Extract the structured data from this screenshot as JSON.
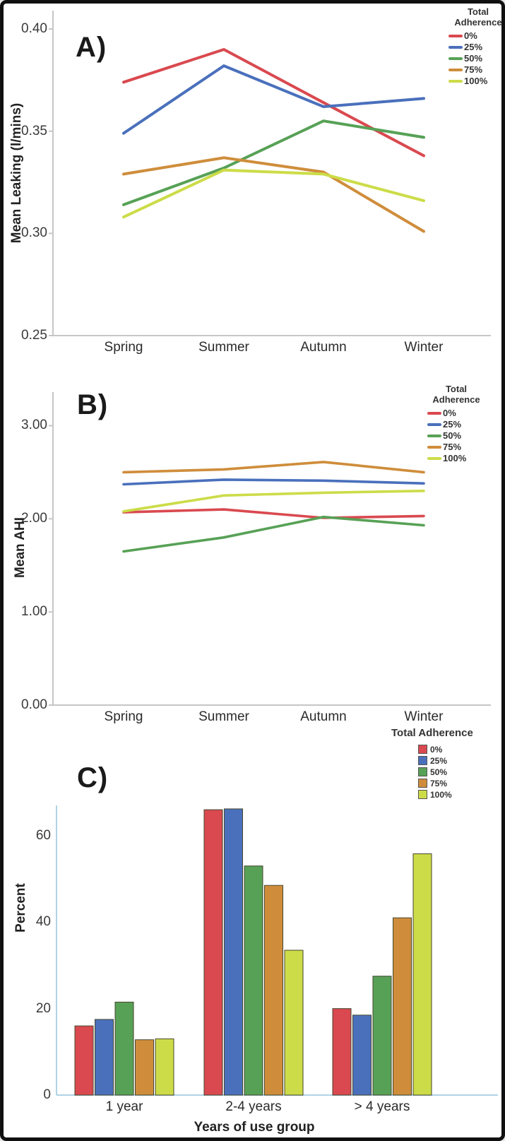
{
  "legend_title": "Total Adherence",
  "chart_data": [
    {
      "id": "A",
      "type": "line",
      "panel_label": "A)",
      "ylabel": "Mean Leaking (l/mins)",
      "legend_title": "Total Adherence",
      "categories": [
        "Spring",
        "Summer",
        "Autumn",
        "Winter"
      ],
      "yticks": [
        {
          "label": "0.25",
          "value": 0.25
        },
        {
          "label": "0.30",
          "value": 0.3
        },
        {
          "label": "0.35",
          "value": 0.35
        },
        {
          "label": "0.40",
          "value": 0.4
        }
      ],
      "ylim": [
        0.25,
        0.409
      ],
      "grid": false,
      "legend_position": "top-right",
      "series": [
        {
          "name": "0%",
          "color": "#d9494f",
          "values": [
            0.374,
            0.39,
            0.364,
            0.338
          ]
        },
        {
          "name": "25%",
          "color": "#4a70bc",
          "values": [
            0.349,
            0.382,
            0.362,
            0.366
          ]
        },
        {
          "name": "50%",
          "color": "#57a156",
          "values": [
            0.314,
            0.332,
            0.355,
            0.347
          ]
        },
        {
          "name": "75%",
          "color": "#cf8d3b",
          "values": [
            0.329,
            0.337,
            0.33,
            0.301
          ]
        },
        {
          "name": "100%",
          "color": "#ccdc48",
          "values": [
            0.308,
            0.331,
            0.329,
            0.316
          ]
        }
      ]
    },
    {
      "id": "B",
      "type": "line",
      "panel_label": "B)",
      "ylabel": "Mean AHI",
      "legend_title": "Total Adherence",
      "categories": [
        "Spring",
        "Summer",
        "Autumn",
        "Winter"
      ],
      "yticks": [
        {
          "label": "0.00",
          "value": 0.0
        },
        {
          "label": "1.00",
          "value": 1.0
        },
        {
          "label": "2.00",
          "value": 2.0
        },
        {
          "label": "3.00",
          "value": 3.0
        }
      ],
      "ylim": [
        0,
        3.36
      ],
      "grid": false,
      "legend_position": "top-right",
      "series": [
        {
          "name": "0%",
          "color": "#d9494f",
          "values": [
            2.07,
            2.1,
            2.01,
            2.03
          ]
        },
        {
          "name": "25%",
          "color": "#4a70bc",
          "values": [
            2.37,
            2.42,
            2.41,
            2.38
          ]
        },
        {
          "name": "50%",
          "color": "#57a156",
          "values": [
            1.65,
            1.8,
            2.02,
            1.93
          ]
        },
        {
          "name": "75%",
          "color": "#cf8d3b",
          "values": [
            2.5,
            2.53,
            2.61,
            2.5
          ]
        },
        {
          "name": "100%",
          "color": "#ccdc48",
          "values": [
            2.08,
            2.25,
            2.28,
            2.3
          ]
        }
      ]
    },
    {
      "id": "C",
      "type": "bar",
      "panel_label": "C)",
      "ylabel": "Percent",
      "xlabel": "Years of use group",
      "legend_title": "Total Adherence",
      "categories": [
        "1 year",
        "2-4 years",
        "> 4 years"
      ],
      "yticks": [
        {
          "label": "0",
          "value": 0
        },
        {
          "label": "20",
          "value": 20
        },
        {
          "label": "40",
          "value": 40
        },
        {
          "label": "60",
          "value": 60
        }
      ],
      "ylim": [
        0,
        67
      ],
      "grid": false,
      "legend_position": "top-right",
      "series": [
        {
          "name": "0%",
          "color": "#d9494f",
          "values": [
            16.0,
            66.0,
            20.0
          ]
        },
        {
          "name": "25%",
          "color": "#4a70bc",
          "values": [
            17.5,
            66.2,
            18.5
          ]
        },
        {
          "name": "50%",
          "color": "#57a156",
          "values": [
            21.5,
            53.0,
            27.5
          ]
        },
        {
          "name": "75%",
          "color": "#cf8d3b",
          "values": [
            12.8,
            48.5,
            41.0
          ]
        },
        {
          "name": "100%",
          "color": "#ccdc48",
          "values": [
            13.0,
            33.5,
            55.8
          ]
        }
      ]
    }
  ]
}
